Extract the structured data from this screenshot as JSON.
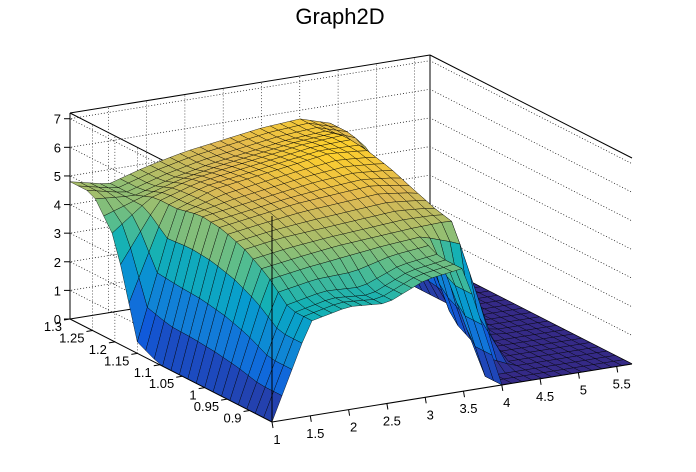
{
  "chart_data": {
    "type": "surface",
    "title": "Graph2D",
    "xlabel": "",
    "ylabel": "",
    "zlabel": "",
    "x_range": [
      1,
      5.7
    ],
    "y_range": [
      0.85,
      1.3
    ],
    "z_range": [
      0,
      7.2
    ],
    "x_ticks": [
      "1",
      "1.5",
      "2",
      "2.5",
      "3",
      "3.5",
      "4",
      "4.5",
      "5",
      "5.5"
    ],
    "y_ticks": [
      "0.9",
      "0.95",
      "1",
      "1.05",
      "1.1",
      "1.15",
      "1.2",
      "1.25",
      "1.3"
    ],
    "z_ticks": [
      "0",
      "1",
      "2",
      "3",
      "4",
      "5",
      "6",
      "7"
    ],
    "grid": true,
    "colormap": "viridis-like",
    "grid_x": [
      1.0,
      1.5,
      2.0,
      2.5,
      3.0,
      3.5,
      4.0,
      4.5,
      5.0,
      5.5
    ],
    "grid_y": [
      0.9,
      0.95,
      1.0,
      1.05,
      1.1,
      1.15,
      1.2,
      1.25
    ],
    "z": [
      [
        0,
        3.3,
        3.6,
        3.5,
        4.1,
        4.3,
        0,
        0,
        0,
        0
      ],
      [
        0,
        4.1,
        4.3,
        4.5,
        4.6,
        4.7,
        4.8,
        0,
        0,
        0
      ],
      [
        0,
        4.6,
        4.8,
        4.9,
        5.0,
        5.1,
        5.0,
        0,
        0,
        0
      ],
      [
        0,
        4.9,
        5.1,
        5.3,
        5.4,
        5.5,
        5.3,
        0.5,
        0,
        0
      ],
      [
        0,
        5.0,
        5.2,
        5.4,
        5.6,
        5.7,
        5.6,
        2.4,
        0,
        0
      ],
      [
        0.4,
        4.8,
        5.3,
        5.5,
        5.7,
        5.9,
        5.8,
        3.8,
        0,
        0
      ],
      [
        3.6,
        4.8,
        5.2,
        5.4,
        5.6,
        5.8,
        5.9,
        4.6,
        0,
        0
      ],
      [
        4.8,
        4.5,
        4.9,
        5.2,
        5.4,
        5.6,
        5.7,
        5.3,
        0,
        0
      ]
    ]
  }
}
